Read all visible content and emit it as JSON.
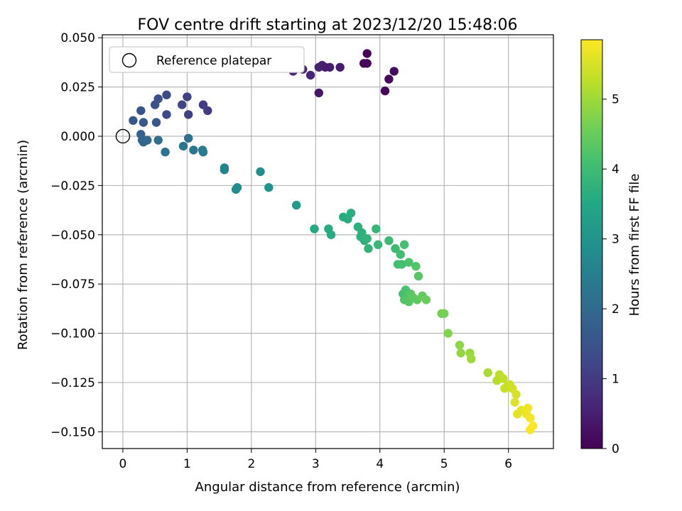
{
  "chart_data": {
    "type": "scatter",
    "title": "FOV centre drift starting at 2023/12/20 15:48:06",
    "xlabel": "Angular distance from reference (arcmin)",
    "ylabel": "Rotation from reference (arcmin)",
    "xlim": [
      -0.32,
      6.7
    ],
    "ylim": [
      -0.1585,
      0.0515
    ],
    "xticks": [
      0,
      1,
      2,
      3,
      4,
      5,
      6
    ],
    "xtick_labels": [
      "0",
      "1",
      "2",
      "3",
      "4",
      "5",
      "6"
    ],
    "yticks": [
      0.05,
      0.025,
      0.0,
      -0.025,
      -0.05,
      -0.075,
      -0.1,
      -0.125,
      -0.15
    ],
    "ytick_labels": [
      "0.050",
      "0.025",
      "0.000",
      "−0.025",
      "−0.050",
      "−0.075",
      "−0.100",
      "−0.125",
      "−0.150"
    ],
    "grid": true,
    "legend": {
      "position": "top-left",
      "entries": [
        "Reference platepar"
      ]
    },
    "reference_point": {
      "x": 0.0,
      "y": 0.0,
      "label": "Reference platepar"
    },
    "colorbar": {
      "label": "Hours from first FF file",
      "colormap": "viridis",
      "range": [
        0,
        5.85
      ],
      "ticks": [
        0,
        1,
        2,
        3,
        4,
        5
      ],
      "tick_labels": [
        "0",
        "1",
        "2",
        "3",
        "4",
        "5"
      ]
    },
    "points": [
      [
        3.8,
        0.042,
        0.05
      ],
      [
        3.75,
        0.037,
        0.08
      ],
      [
        3.8,
        0.037,
        0.1
      ],
      [
        4.22,
        0.033,
        0.2
      ],
      [
        4.14,
        0.029,
        0.15
      ],
      [
        4.08,
        0.023,
        0.12
      ],
      [
        3.38,
        0.035,
        0.45
      ],
      [
        3.22,
        0.035,
        0.5
      ],
      [
        3.05,
        0.035,
        0.55
      ],
      [
        3.1,
        0.036,
        0.52
      ],
      [
        3.15,
        0.035,
        0.48
      ],
      [
        3.05,
        0.022,
        0.35
      ],
      [
        2.65,
        0.033,
        0.6
      ],
      [
        2.8,
        0.034,
        0.58
      ],
      [
        2.92,
        0.031,
        0.62
      ],
      [
        1.32,
        0.013,
        1.0
      ],
      [
        1.25,
        0.016,
        1.05
      ],
      [
        1.02,
        0.011,
        1.1
      ],
      [
        1.0,
        0.02,
        1.15
      ],
      [
        0.92,
        0.016,
        1.2
      ],
      [
        0.68,
        0.021,
        1.3
      ],
      [
        0.68,
        0.011,
        1.35
      ],
      [
        0.55,
        0.019,
        1.4
      ],
      [
        0.5,
        0.016,
        1.45
      ],
      [
        0.52,
        0.007,
        1.55
      ],
      [
        0.28,
        0.013,
        1.5
      ],
      [
        0.32,
        0.007,
        1.6
      ],
      [
        0.16,
        0.008,
        1.55
      ],
      [
        0.28,
        0.001,
        1.8
      ],
      [
        0.3,
        -0.002,
        1.9
      ],
      [
        0.32,
        -0.003,
        1.95
      ],
      [
        0.38,
        -0.002,
        2.0
      ],
      [
        0.55,
        -0.002,
        2.1
      ],
      [
        0.66,
        -0.008,
        2.2
      ],
      [
        1.02,
        -0.001,
        2.15
      ],
      [
        0.94,
        -0.005,
        2.3
      ],
      [
        1.1,
        -0.007,
        2.35
      ],
      [
        1.25,
        -0.008,
        2.4
      ],
      [
        1.24,
        -0.007,
        2.45
      ],
      [
        1.58,
        -0.016,
        2.6
      ],
      [
        1.58,
        -0.017,
        2.65
      ],
      [
        1.78,
        -0.026,
        2.8
      ],
      [
        1.76,
        -0.027,
        2.85
      ],
      [
        2.14,
        -0.018,
        2.9
      ],
      [
        2.27,
        -0.026,
        3.0
      ],
      [
        2.7,
        -0.035,
        3.2
      ],
      [
        2.98,
        -0.047,
        3.55
      ],
      [
        3.2,
        -0.047,
        3.6
      ],
      [
        3.24,
        -0.05,
        3.6
      ],
      [
        3.43,
        -0.041,
        3.6
      ],
      [
        3.5,
        -0.042,
        3.62
      ],
      [
        3.55,
        -0.039,
        3.65
      ],
      [
        3.66,
        -0.046,
        3.7
      ],
      [
        3.72,
        -0.049,
        3.7
      ],
      [
        3.7,
        -0.051,
        3.72
      ],
      [
        3.76,
        -0.053,
        3.75
      ],
      [
        3.8,
        -0.052,
        3.78
      ],
      [
        3.82,
        -0.057,
        3.8
      ],
      [
        3.94,
        -0.047,
        3.85
      ],
      [
        3.97,
        -0.055,
        3.9
      ],
      [
        4.14,
        -0.053,
        3.95
      ],
      [
        4.24,
        -0.057,
        4.0
      ],
      [
        4.28,
        -0.065,
        4.05
      ],
      [
        4.32,
        -0.06,
        4.05
      ],
      [
        4.34,
        -0.065,
        4.1
      ],
      [
        4.38,
        -0.055,
        4.1
      ],
      [
        4.45,
        -0.064,
        4.2
      ],
      [
        4.56,
        -0.066,
        4.25
      ],
      [
        4.6,
        -0.071,
        4.3
      ],
      [
        4.36,
        -0.08,
        4.1
      ],
      [
        4.4,
        -0.078,
        4.15
      ],
      [
        4.42,
        -0.082,
        4.2
      ],
      [
        4.38,
        -0.083,
        4.25
      ],
      [
        4.45,
        -0.084,
        4.3
      ],
      [
        4.48,
        -0.08,
        4.35
      ],
      [
        4.52,
        -0.082,
        4.4
      ],
      [
        4.58,
        -0.083,
        4.4
      ],
      [
        4.66,
        -0.081,
        4.45
      ],
      [
        4.72,
        -0.083,
        4.5
      ],
      [
        4.96,
        -0.09,
        4.6
      ],
      [
        5.0,
        -0.09,
        4.65
      ],
      [
        5.06,
        -0.1,
        4.75
      ],
      [
        5.24,
        -0.106,
        4.85
      ],
      [
        5.26,
        -0.11,
        4.9
      ],
      [
        5.4,
        -0.11,
        4.95
      ],
      [
        5.42,
        -0.113,
        5.0
      ],
      [
        5.68,
        -0.12,
        5.1
      ],
      [
        5.82,
        -0.124,
        5.2
      ],
      [
        5.86,
        -0.121,
        5.25
      ],
      [
        5.92,
        -0.123,
        5.3
      ],
      [
        5.94,
        -0.128,
        5.35
      ],
      [
        5.98,
        -0.127,
        5.35
      ],
      [
        6.02,
        -0.126,
        5.4
      ],
      [
        6.06,
        -0.128,
        5.45
      ],
      [
        6.12,
        -0.131,
        5.5
      ],
      [
        6.1,
        -0.135,
        5.55
      ],
      [
        6.14,
        -0.141,
        5.6
      ],
      [
        6.2,
        -0.139,
        5.65
      ],
      [
        6.28,
        -0.141,
        5.7
      ],
      [
        6.3,
        -0.138,
        5.72
      ],
      [
        6.34,
        -0.143,
        5.75
      ],
      [
        6.34,
        -0.149,
        5.8
      ],
      [
        6.38,
        -0.147,
        5.85
      ]
    ]
  }
}
